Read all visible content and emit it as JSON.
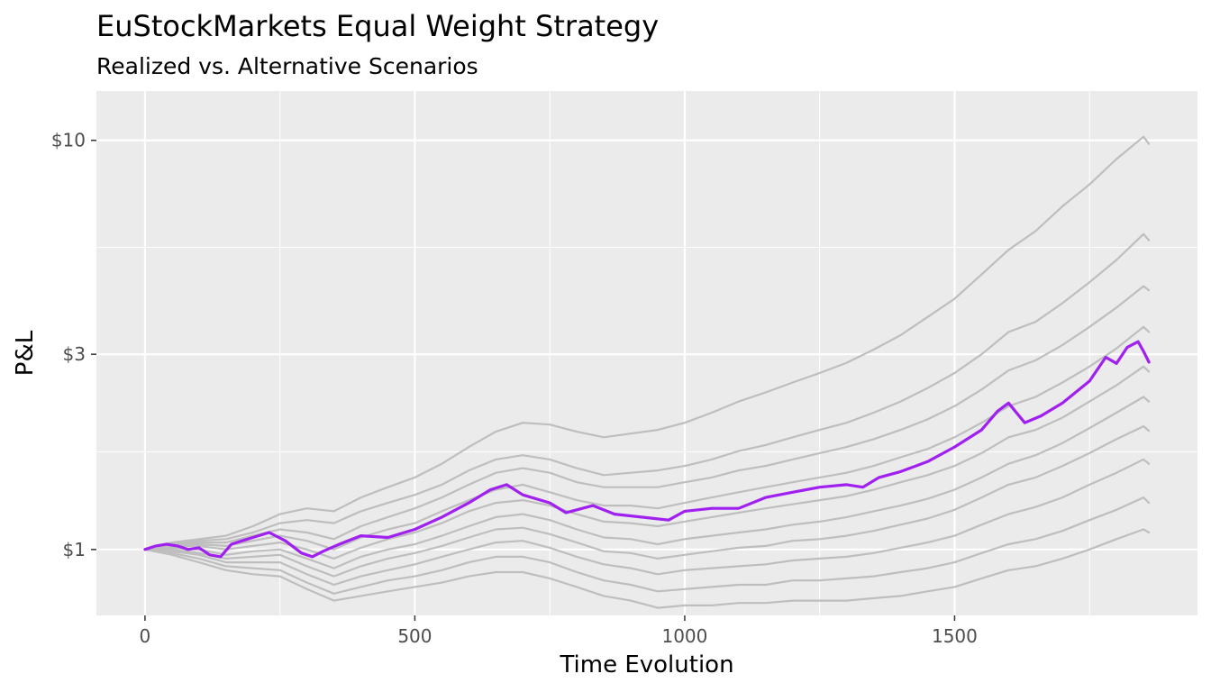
{
  "chart_data": {
    "type": "line",
    "title": "EuStockMarkets Equal Weight Strategy",
    "subtitle": "Realized vs. Alternative Scenarios",
    "xlabel": "Time Evolution",
    "ylabel": "P&L",
    "xlim": [
      -90,
      1950
    ],
    "ylim": [
      0.69,
      13.2
    ],
    "y_scale": "log10",
    "x_ticks": [
      0,
      500,
      1000,
      1500
    ],
    "x_tick_labels": [
      "0",
      "500",
      "1000",
      "1500"
    ],
    "y_ticks": [
      1,
      3,
      10
    ],
    "y_tick_labels": [
      "$1",
      "$3",
      "$10"
    ],
    "grid": true,
    "legend": "none",
    "realized_color": "#a020f0",
    "scenario_color": "#bebebe",
    "panel_color": "#ebebeb",
    "series": [
      {
        "role": "realized",
        "x": [
          0,
          20,
          40,
          60,
          80,
          100,
          120,
          140,
          160,
          180,
          200,
          230,
          260,
          290,
          310,
          330,
          360,
          400,
          450,
          500,
          550,
          600,
          640,
          670,
          700,
          750,
          780,
          830,
          870,
          920,
          970,
          1000,
          1050,
          1100,
          1150,
          1200,
          1250,
          1300,
          1330,
          1360,
          1400,
          1450,
          1500,
          1550,
          1580,
          1600,
          1630,
          1660,
          1700,
          1750,
          1780,
          1800,
          1820,
          1840,
          1850,
          1860
        ],
        "y": [
          1.0,
          1.02,
          1.03,
          1.02,
          1.0,
          1.01,
          0.97,
          0.96,
          1.03,
          1.05,
          1.07,
          1.1,
          1.05,
          0.98,
          0.96,
          0.99,
          1.03,
          1.08,
          1.07,
          1.12,
          1.2,
          1.3,
          1.4,
          1.44,
          1.36,
          1.3,
          1.23,
          1.28,
          1.22,
          1.2,
          1.18,
          1.24,
          1.26,
          1.26,
          1.34,
          1.38,
          1.42,
          1.44,
          1.42,
          1.5,
          1.55,
          1.64,
          1.78,
          1.96,
          2.18,
          2.28,
          2.04,
          2.12,
          2.28,
          2.58,
          2.95,
          2.85,
          3.12,
          3.22,
          3.05,
          2.87
        ]
      },
      {
        "role": "scenario",
        "x": [
          0,
          50,
          100,
          150,
          200,
          250,
          300,
          350,
          400,
          450,
          500,
          550,
          600,
          650,
          700,
          750,
          800,
          850,
          900,
          950,
          1000,
          1050,
          1100,
          1150,
          1200,
          1250,
          1300,
          1350,
          1400,
          1450,
          1500,
          1550,
          1600,
          1650,
          1700,
          1750,
          1800,
          1850,
          1860
        ],
        "y": [
          1.0,
          1.04,
          1.06,
          1.08,
          1.14,
          1.22,
          1.26,
          1.24,
          1.34,
          1.42,
          1.5,
          1.62,
          1.78,
          1.94,
          2.04,
          2.02,
          1.94,
          1.88,
          1.92,
          1.96,
          2.04,
          2.16,
          2.3,
          2.42,
          2.56,
          2.7,
          2.86,
          3.08,
          3.34,
          3.7,
          4.1,
          4.7,
          5.4,
          6.0,
          6.9,
          7.8,
          9.0,
          10.2,
          9.8
        ]
      },
      {
        "role": "scenario",
        "x": [
          0,
          50,
          100,
          150,
          200,
          250,
          300,
          350,
          400,
          450,
          500,
          550,
          600,
          650,
          700,
          750,
          800,
          850,
          900,
          950,
          1000,
          1050,
          1100,
          1150,
          1200,
          1250,
          1300,
          1350,
          1400,
          1450,
          1500,
          1550,
          1600,
          1650,
          1700,
          1750,
          1800,
          1850,
          1860
        ],
        "y": [
          1.0,
          1.04,
          1.05,
          1.06,
          1.1,
          1.16,
          1.18,
          1.16,
          1.24,
          1.3,
          1.36,
          1.44,
          1.56,
          1.66,
          1.7,
          1.66,
          1.58,
          1.52,
          1.54,
          1.56,
          1.6,
          1.66,
          1.74,
          1.8,
          1.88,
          1.96,
          2.04,
          2.16,
          2.3,
          2.48,
          2.7,
          3.0,
          3.4,
          3.6,
          4.0,
          4.5,
          5.1,
          5.9,
          5.7
        ]
      },
      {
        "role": "scenario",
        "x": [
          0,
          50,
          100,
          150,
          200,
          250,
          300,
          350,
          400,
          450,
          500,
          550,
          600,
          650,
          700,
          750,
          800,
          850,
          900,
          950,
          1000,
          1050,
          1100,
          1150,
          1200,
          1250,
          1300,
          1350,
          1400,
          1450,
          1500,
          1550,
          1600,
          1650,
          1700,
          1750,
          1800,
          1850,
          1860
        ],
        "y": [
          1.0,
          1.04,
          1.04,
          1.04,
          1.08,
          1.12,
          1.1,
          1.06,
          1.14,
          1.2,
          1.26,
          1.34,
          1.44,
          1.54,
          1.58,
          1.54,
          1.46,
          1.42,
          1.42,
          1.42,
          1.46,
          1.5,
          1.56,
          1.6,
          1.66,
          1.72,
          1.78,
          1.86,
          1.96,
          2.08,
          2.24,
          2.46,
          2.74,
          2.9,
          3.16,
          3.5,
          3.9,
          4.4,
          4.3
        ]
      },
      {
        "role": "scenario",
        "x": [
          0,
          50,
          100,
          150,
          200,
          250,
          300,
          350,
          400,
          450,
          500,
          550,
          600,
          650,
          700,
          750,
          800,
          850,
          900,
          950,
          1000,
          1050,
          1100,
          1150,
          1200,
          1250,
          1300,
          1350,
          1400,
          1450,
          1500,
          1550,
          1600,
          1650,
          1700,
          1750,
          1800,
          1850,
          1860
        ],
        "y": [
          1.0,
          1.03,
          1.03,
          1.02,
          1.05,
          1.08,
          1.05,
          1.0,
          1.07,
          1.12,
          1.16,
          1.24,
          1.32,
          1.4,
          1.44,
          1.38,
          1.32,
          1.28,
          1.28,
          1.26,
          1.3,
          1.34,
          1.38,
          1.42,
          1.46,
          1.5,
          1.54,
          1.6,
          1.68,
          1.76,
          1.88,
          2.04,
          2.24,
          2.36,
          2.56,
          2.8,
          3.1,
          3.5,
          3.4
        ]
      },
      {
        "role": "scenario",
        "x": [
          0,
          50,
          100,
          150,
          200,
          250,
          300,
          350,
          400,
          450,
          500,
          550,
          600,
          650,
          700,
          750,
          800,
          850,
          900,
          950,
          1000,
          1050,
          1100,
          1150,
          1200,
          1250,
          1300,
          1350,
          1400,
          1450,
          1500,
          1550,
          1600,
          1650,
          1700,
          1750,
          1800,
          1850,
          1860
        ],
        "y": [
          1.0,
          1.02,
          1.02,
          1.0,
          1.02,
          1.04,
          1.0,
          0.95,
          1.01,
          1.06,
          1.1,
          1.16,
          1.24,
          1.3,
          1.32,
          1.28,
          1.22,
          1.17,
          1.16,
          1.14,
          1.17,
          1.2,
          1.23,
          1.26,
          1.29,
          1.32,
          1.35,
          1.4,
          1.46,
          1.52,
          1.6,
          1.72,
          1.88,
          1.96,
          2.1,
          2.3,
          2.52,
          2.8,
          2.72
        ]
      },
      {
        "role": "scenario",
        "x": [
          0,
          50,
          100,
          150,
          200,
          250,
          300,
          350,
          400,
          450,
          500,
          550,
          600,
          650,
          700,
          750,
          800,
          850,
          900,
          950,
          1000,
          1050,
          1100,
          1150,
          1200,
          1250,
          1300,
          1350,
          1400,
          1450,
          1500,
          1550,
          1600,
          1650,
          1700,
          1750,
          1800,
          1850,
          1860
        ],
        "y": [
          1.0,
          1.01,
          1.0,
          0.97,
          0.99,
          1.0,
          0.95,
          0.9,
          0.96,
          1.0,
          1.03,
          1.08,
          1.14,
          1.2,
          1.22,
          1.18,
          1.12,
          1.07,
          1.06,
          1.03,
          1.06,
          1.08,
          1.1,
          1.12,
          1.15,
          1.17,
          1.2,
          1.24,
          1.28,
          1.33,
          1.4,
          1.5,
          1.62,
          1.7,
          1.82,
          1.98,
          2.16,
          2.36,
          2.3
        ]
      },
      {
        "role": "scenario",
        "x": [
          0,
          50,
          100,
          150,
          200,
          250,
          300,
          350,
          400,
          450,
          500,
          550,
          600,
          650,
          700,
          750,
          800,
          850,
          900,
          950,
          1000,
          1050,
          1100,
          1150,
          1200,
          1250,
          1300,
          1350,
          1400,
          1450,
          1500,
          1550,
          1600,
          1650,
          1700,
          1750,
          1800,
          1850,
          1860
        ],
        "y": [
          1.0,
          1.0,
          0.98,
          0.95,
          0.96,
          0.97,
          0.91,
          0.86,
          0.91,
          0.95,
          0.98,
          1.02,
          1.07,
          1.12,
          1.13,
          1.09,
          1.04,
          0.99,
          0.98,
          0.95,
          0.97,
          0.99,
          1.01,
          1.02,
          1.05,
          1.06,
          1.08,
          1.11,
          1.15,
          1.19,
          1.25,
          1.34,
          1.44,
          1.5,
          1.6,
          1.72,
          1.86,
          2.0,
          1.95
        ]
      },
      {
        "role": "scenario",
        "x": [
          0,
          50,
          100,
          150,
          200,
          250,
          300,
          350,
          400,
          450,
          500,
          550,
          600,
          650,
          700,
          750,
          800,
          850,
          900,
          950,
          1000,
          1050,
          1100,
          1150,
          1200,
          1250,
          1300,
          1350,
          1400,
          1450,
          1500,
          1550,
          1600,
          1650,
          1700,
          1750,
          1800,
          1850,
          1860
        ],
        "y": [
          1.0,
          0.99,
          0.97,
          0.93,
          0.93,
          0.93,
          0.87,
          0.82,
          0.86,
          0.89,
          0.92,
          0.96,
          1.0,
          1.04,
          1.05,
          1.01,
          0.96,
          0.92,
          0.9,
          0.87,
          0.89,
          0.9,
          0.91,
          0.92,
          0.94,
          0.95,
          0.96,
          0.98,
          1.01,
          1.04,
          1.08,
          1.15,
          1.22,
          1.27,
          1.34,
          1.44,
          1.54,
          1.66,
          1.62
        ]
      },
      {
        "role": "scenario",
        "x": [
          0,
          50,
          100,
          150,
          200,
          250,
          300,
          350,
          400,
          450,
          500,
          550,
          600,
          650,
          700,
          750,
          800,
          850,
          900,
          950,
          1000,
          1050,
          1100,
          1150,
          1200,
          1250,
          1300,
          1350,
          1400,
          1450,
          1500,
          1550,
          1600,
          1650,
          1700,
          1750,
          1800,
          1850,
          1860
        ],
        "y": [
          1.0,
          0.98,
          0.95,
          0.91,
          0.9,
          0.89,
          0.83,
          0.78,
          0.81,
          0.84,
          0.86,
          0.89,
          0.93,
          0.96,
          0.96,
          0.93,
          0.88,
          0.84,
          0.82,
          0.79,
          0.8,
          0.81,
          0.82,
          0.82,
          0.84,
          0.84,
          0.85,
          0.86,
          0.88,
          0.9,
          0.93,
          0.98,
          1.03,
          1.06,
          1.11,
          1.18,
          1.25,
          1.34,
          1.3
        ]
      },
      {
        "role": "scenario",
        "x": [
          0,
          50,
          100,
          150,
          200,
          250,
          300,
          350,
          400,
          450,
          500,
          550,
          600,
          650,
          700,
          750,
          800,
          850,
          900,
          950,
          1000,
          1050,
          1100,
          1150,
          1200,
          1250,
          1300,
          1350,
          1400,
          1450,
          1500,
          1550,
          1600,
          1650,
          1700,
          1750,
          1800,
          1850,
          1860
        ],
        "y": [
          1.0,
          0.97,
          0.93,
          0.89,
          0.87,
          0.86,
          0.8,
          0.75,
          0.77,
          0.79,
          0.81,
          0.83,
          0.86,
          0.88,
          0.88,
          0.85,
          0.81,
          0.77,
          0.75,
          0.72,
          0.73,
          0.73,
          0.74,
          0.74,
          0.75,
          0.75,
          0.75,
          0.76,
          0.77,
          0.79,
          0.81,
          0.85,
          0.89,
          0.91,
          0.95,
          1.0,
          1.06,
          1.12,
          1.1
        ]
      }
    ]
  }
}
